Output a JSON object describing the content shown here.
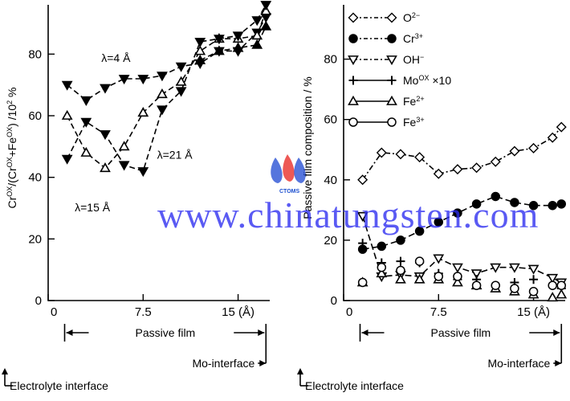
{
  "watermark": {
    "text": "www.chinatungsten.com",
    "logo_text": "CTOMS"
  },
  "chart_data": [
    {
      "type": "line",
      "ylabel": "Cr^OX/(Cr^OX+Fe^OX) /10^2 %",
      "xlim": [
        0,
        17.5
      ],
      "ylim": [
        0,
        96
      ],
      "x_ticks": [
        {
          "value": 0,
          "label": "0"
        },
        {
          "value": 7.5,
          "label": "7.5"
        },
        {
          "value": 15,
          "label": "15 (Å)"
        }
      ],
      "y_ticks": [
        {
          "value": 0,
          "label": "0"
        },
        {
          "value": 20,
          "label": "20"
        },
        {
          "value": 40,
          "label": "40"
        },
        {
          "value": 60,
          "label": "60"
        },
        {
          "value": 80,
          "label": "80"
        }
      ],
      "annotations": [
        {
          "text": "λ=4 Å",
          "x": 4.2,
          "y": 77.5
        },
        {
          "text": "λ=21 Å",
          "x": 8.6,
          "y": 46
        },
        {
          "text": "λ=15 Å",
          "x": 2.1,
          "y": 29
        }
      ],
      "series": [
        {
          "marker": "triangle-down-filled",
          "x": [
            1.5,
            3.0,
            4.5,
            6.0,
            7.5,
            9.0,
            10.5,
            12.0,
            13.5,
            15.0,
            16.5,
            17.2
          ],
          "y": [
            70,
            65,
            69,
            72,
            72,
            73,
            76,
            77,
            81,
            81,
            87,
            92
          ]
        },
        {
          "marker": "triangle-up-open",
          "x": [
            1.5,
            3.0,
            4.5,
            6.0,
            7.5,
            9.0,
            10.5,
            12.0,
            13.5,
            15.0,
            16.5,
            17.2
          ],
          "y": [
            60,
            48,
            43,
            50,
            61,
            67,
            71,
            81,
            85,
            85,
            86,
            94
          ]
        },
        {
          "marker": "triangle-down-filled",
          "x": [
            1.5,
            3.0,
            4.5,
            6.0,
            7.5,
            9.0,
            10.5,
            12.0,
            13.5,
            15.0,
            16.5,
            17.2
          ],
          "y": [
            46,
            58,
            54,
            44,
            42,
            62,
            68,
            84,
            85,
            86,
            91,
            96
          ]
        },
        {
          "marker": "triangle-up-filled",
          "x": [
            12.0,
            13.5,
            15.0,
            16.5,
            17.2
          ],
          "y": [
            78,
            81,
            82,
            83,
            89
          ]
        }
      ],
      "brackets": [
        {
          "label": "Passive film",
          "from": 1.3,
          "to": 17.2
        },
        {
          "label": "Mo-interface",
          "to": 17.2
        },
        {
          "label": "Electrolyte interface",
          "from": 0
        }
      ]
    },
    {
      "type": "line",
      "ylabel": "Passive film composition / %",
      "xlim": [
        0,
        17.5
      ],
      "ylim": [
        0,
        98
      ],
      "x_ticks": [
        {
          "value": 0,
          "label": "0"
        },
        {
          "value": 7.5,
          "label": "7.5"
        },
        {
          "value": 15,
          "label": "15 (Å)"
        }
      ],
      "y_ticks": [
        {
          "value": 0,
          "label": "0"
        },
        {
          "value": 20,
          "label": "20"
        },
        {
          "value": 40,
          "label": "40"
        },
        {
          "value": 60,
          "label": "60"
        },
        {
          "value": 80,
          "label": "80"
        }
      ],
      "legend": [
        {
          "label": "O",
          "sup": "2−",
          "marker": "diamond-open"
        },
        {
          "label": "Cr",
          "sup": "3+",
          "marker": "circle-filled"
        },
        {
          "label": "OH",
          "sup": "−",
          "marker": "triangle-down-open"
        },
        {
          "label": "Mo",
          "sup": "OX",
          "suffix": " ×10",
          "marker": "plus"
        },
        {
          "label": "Fe",
          "sup": "2+",
          "marker": "triangle-up-open"
        },
        {
          "label": "Fe",
          "sup": "3+",
          "marker": "circle-open"
        }
      ],
      "series": [
        {
          "name": "O2−",
          "marker": "diamond-open",
          "connected": true,
          "x": [
            1.5,
            3.0,
            4.5,
            6.0,
            7.5,
            9.0,
            10.5,
            12.0,
            13.5,
            15.0,
            16.5,
            17.2
          ],
          "y": [
            40,
            49,
            48.5,
            47.5,
            42,
            43.5,
            44,
            46,
            49.5,
            50.5,
            54,
            57.5
          ]
        },
        {
          "name": "Cr3+",
          "marker": "circle-filled",
          "connected": true,
          "x": [
            1.5,
            3.0,
            4.5,
            6.0,
            7.5,
            9.0,
            10.5,
            12.0,
            13.5,
            15.0,
            16.5,
            17.2
          ],
          "y": [
            17,
            18,
            20,
            23,
            26,
            29,
            32,
            34.5,
            32.5,
            31.5,
            31.5,
            32
          ]
        },
        {
          "name": "OH−",
          "marker": "triangle-down-open",
          "connected": true,
          "x": [
            1.5,
            3.0,
            4.5,
            6.0,
            7.5,
            9.0,
            10.5,
            12.0,
            13.5,
            15.0,
            16.5,
            17.2
          ],
          "y": [
            28,
            8,
            8.5,
            8,
            14,
            11,
            9,
            11,
            11,
            10.5,
            7.5,
            6
          ]
        },
        {
          "name": "MoOX ×10",
          "marker": "plus",
          "connected": false,
          "x": [
            1.5,
            3.0,
            4.5,
            6.0,
            7.5,
            9.0,
            10.5,
            12.0,
            13.5,
            15.0,
            16.5,
            17.2
          ],
          "y": [
            19,
            12.5,
            13,
            12.5,
            9,
            7,
            7,
            5,
            6,
            7,
            5,
            4
          ]
        },
        {
          "name": "Fe2+",
          "marker": "triangle-up-open",
          "connected": false,
          "x": [
            1.5,
            3.0,
            4.5,
            6.0,
            7.5,
            9.0,
            10.5,
            12.0,
            13.5,
            15.0,
            16.5,
            17.2
          ],
          "y": [
            6,
            9,
            7,
            7,
            7,
            6,
            5,
            4,
            3,
            2,
            1,
            2
          ]
        },
        {
          "name": "Fe3+",
          "marker": "circle-open",
          "connected": false,
          "x": [
            1.5,
            3.0,
            4.5,
            6.0,
            7.5,
            9.0,
            10.5,
            12.0,
            13.5,
            15.0,
            16.5,
            17.2
          ],
          "y": [
            6,
            11,
            10,
            13,
            8,
            8,
            5,
            5,
            4,
            3,
            5,
            5
          ]
        }
      ],
      "brackets": [
        {
          "label": "Passive film",
          "from": 1.3,
          "to": 17.2
        },
        {
          "label": "Mo-interface",
          "to": 17.2
        },
        {
          "label": "Electrolyte interface",
          "from": 0
        }
      ]
    }
  ]
}
